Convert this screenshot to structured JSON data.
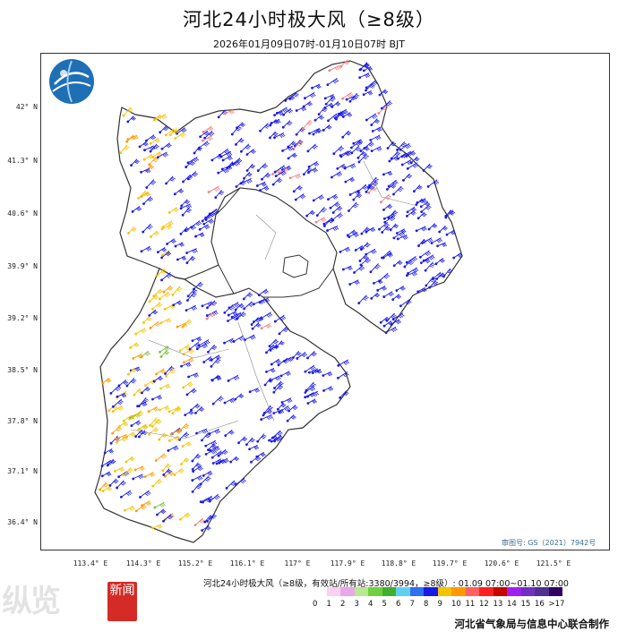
{
  "header": {
    "title": "河北24小时极大风（≥8级）",
    "subtitle": "2026年01月09日07时-01月10日07时 BJT"
  },
  "axes": {
    "lat_labels": [
      "42° N",
      "41.3° N",
      "40.6° N",
      "39.9° N",
      "39.2° N",
      "38.5° N",
      "37.8° N",
      "37.1° N",
      "36.4° N"
    ],
    "lon_labels": [
      "113.4° E",
      "114.3° E",
      "115.2° E",
      "116.1° E",
      "117° E",
      "117.9° E",
      "118.8° E",
      "119.7° E",
      "120.6° E",
      "121.5° E"
    ]
  },
  "map": {
    "map_number": "审图号: GS（2021）7942号",
    "province_fill": "#ffffff",
    "border_color": "#333333",
    "barb_colors": {
      "blue": "#1a1ae6",
      "yellow": "#f5c400",
      "orange": "#ff9900",
      "green": "#80c040",
      "pink": "#f08080"
    }
  },
  "legend": {
    "title": "河北24小时极大风（≥8级，有效站/所有站:3380/3994，≥8级）: 01.09 07:00~01.10 07:00",
    "levels": [
      "0",
      "1",
      "2",
      "3",
      "4",
      "5",
      "6",
      "7",
      "8",
      "9",
      "10",
      "11",
      "12",
      "13",
      "14",
      "15",
      "16",
      ">17"
    ],
    "colors": [
      "#ffffff",
      "#f8d0f0",
      "#e8a8e8",
      "#b8e890",
      "#70d040",
      "#40b030",
      "#60d0f0",
      "#3070f0",
      "#1a1ae6",
      "#f5c400",
      "#ff9900",
      "#ff6060",
      "#ff2020",
      "#c80000",
      "#a020f0",
      "#7030c0",
      "#503090",
      "#300060"
    ]
  },
  "footer": {
    "organization": "河北省气象局与信息中心联合制作",
    "watermark": "纵览",
    "watermark_badge": "新闻"
  }
}
